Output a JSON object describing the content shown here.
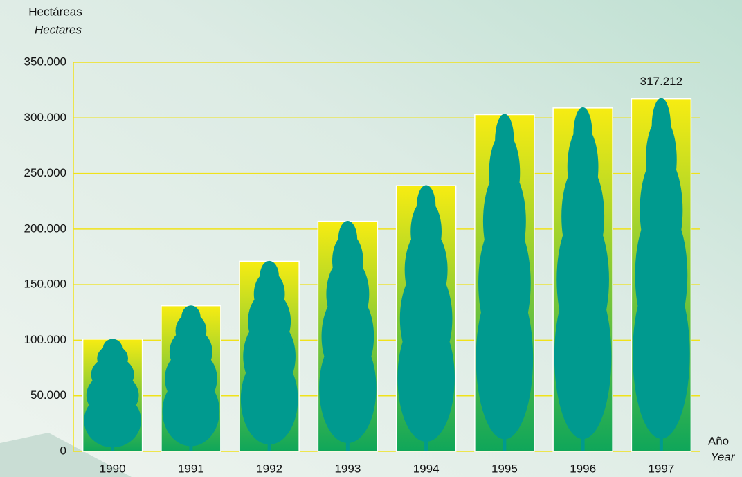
{
  "chart_data": {
    "type": "bar",
    "y_label": "Hectáreas",
    "y_label_en": "Hectares",
    "x_label": "Año",
    "x_label_en": "Year",
    "categories": [
      "1990",
      "1991",
      "1992",
      "1993",
      "1994",
      "1995",
      "1996",
      "1997"
    ],
    "values": [
      101000,
      131000,
      171000,
      207000,
      239000,
      303000,
      309000,
      317212
    ],
    "value_labels": [
      null,
      null,
      null,
      null,
      null,
      null,
      null,
      "317.212"
    ],
    "ylim": [
      0,
      350000
    ],
    "yticks": [
      0,
      {
        "value": 50000,
        "label": "50.000"
      },
      {
        "value": 100000,
        "label": "100.000"
      },
      {
        "value": 150000,
        "label": "150.000"
      },
      {
        "value": 200000,
        "label": "200.000"
      },
      {
        "value": 250000,
        "label": "250.000"
      },
      {
        "value": 300000,
        "label": "300.000"
      },
      {
        "value": 350000,
        "label": "350.000"
      }
    ],
    "grid": true,
    "grid_color": "#f0e21a",
    "bar_top_color": "#f7ec12",
    "bar_bottom_color": "#0fa65a",
    "tree_color": "#009a8f"
  }
}
